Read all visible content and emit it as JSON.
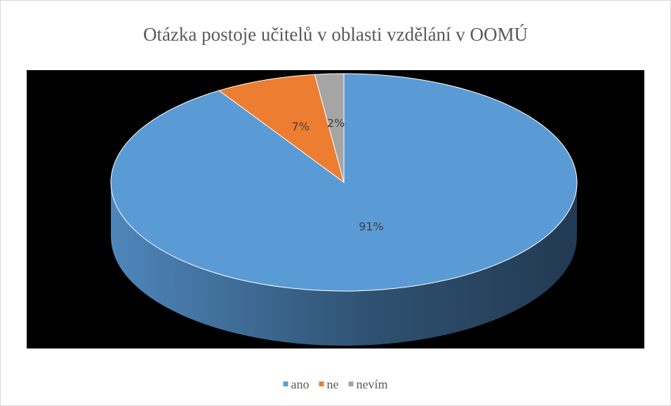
{
  "chart_data": {
    "type": "pie3d",
    "title": "Otázka postoje učitelů v oblasti vzdělání v OOMÚ",
    "categories": [
      "ano",
      "ne",
      "nevím"
    ],
    "values": [
      91,
      7,
      2
    ],
    "value_labels": [
      "91%",
      "7%",
      "2%"
    ],
    "colors": [
      "#5b9bd5",
      "#ed7d31",
      "#a5a5a5"
    ],
    "legend": "bottom"
  }
}
